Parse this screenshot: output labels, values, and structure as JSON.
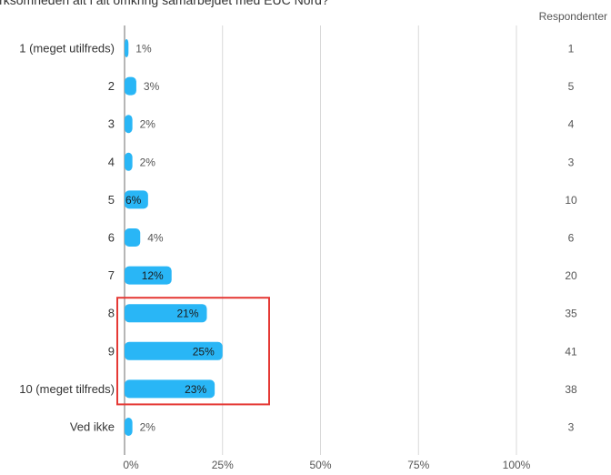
{
  "question": "irksomheden alt i alt omkring samarbejdet med EUC Nord?",
  "respondents_header": "Respondenter",
  "colors": {
    "bar": "#29b6f6",
    "grid": "#d9d9d9",
    "axis": "#9e9e9e",
    "text": "#555555",
    "highlight": "#e53935"
  },
  "chart_data": {
    "type": "bar",
    "orientation": "horizontal",
    "categories": [
      "1 (meget utilfreds)",
      "2",
      "3",
      "4",
      "5",
      "6",
      "7",
      "8",
      "9",
      "10 (meget tilfreds)",
      "Ved ikke"
    ],
    "values": [
      1,
      3,
      2,
      2,
      6,
      4,
      12,
      21,
      25,
      23,
      2
    ],
    "value_labels": [
      "1%",
      "3%",
      "2%",
      "2%",
      "6%",
      "4%",
      "12%",
      "21%",
      "25%",
      "23%",
      "2%"
    ],
    "respondents": [
      "1",
      "5",
      "4",
      "3",
      "10",
      "6",
      "20",
      "35",
      "41",
      "38",
      "3"
    ],
    "x_ticks": [
      "0%",
      "25%",
      "50%",
      "75%",
      "100%"
    ],
    "xlim": [
      0,
      100
    ],
    "grid": true,
    "highlighted_categories": [
      "8",
      "9",
      "10 (meget tilfreds)"
    ]
  }
}
